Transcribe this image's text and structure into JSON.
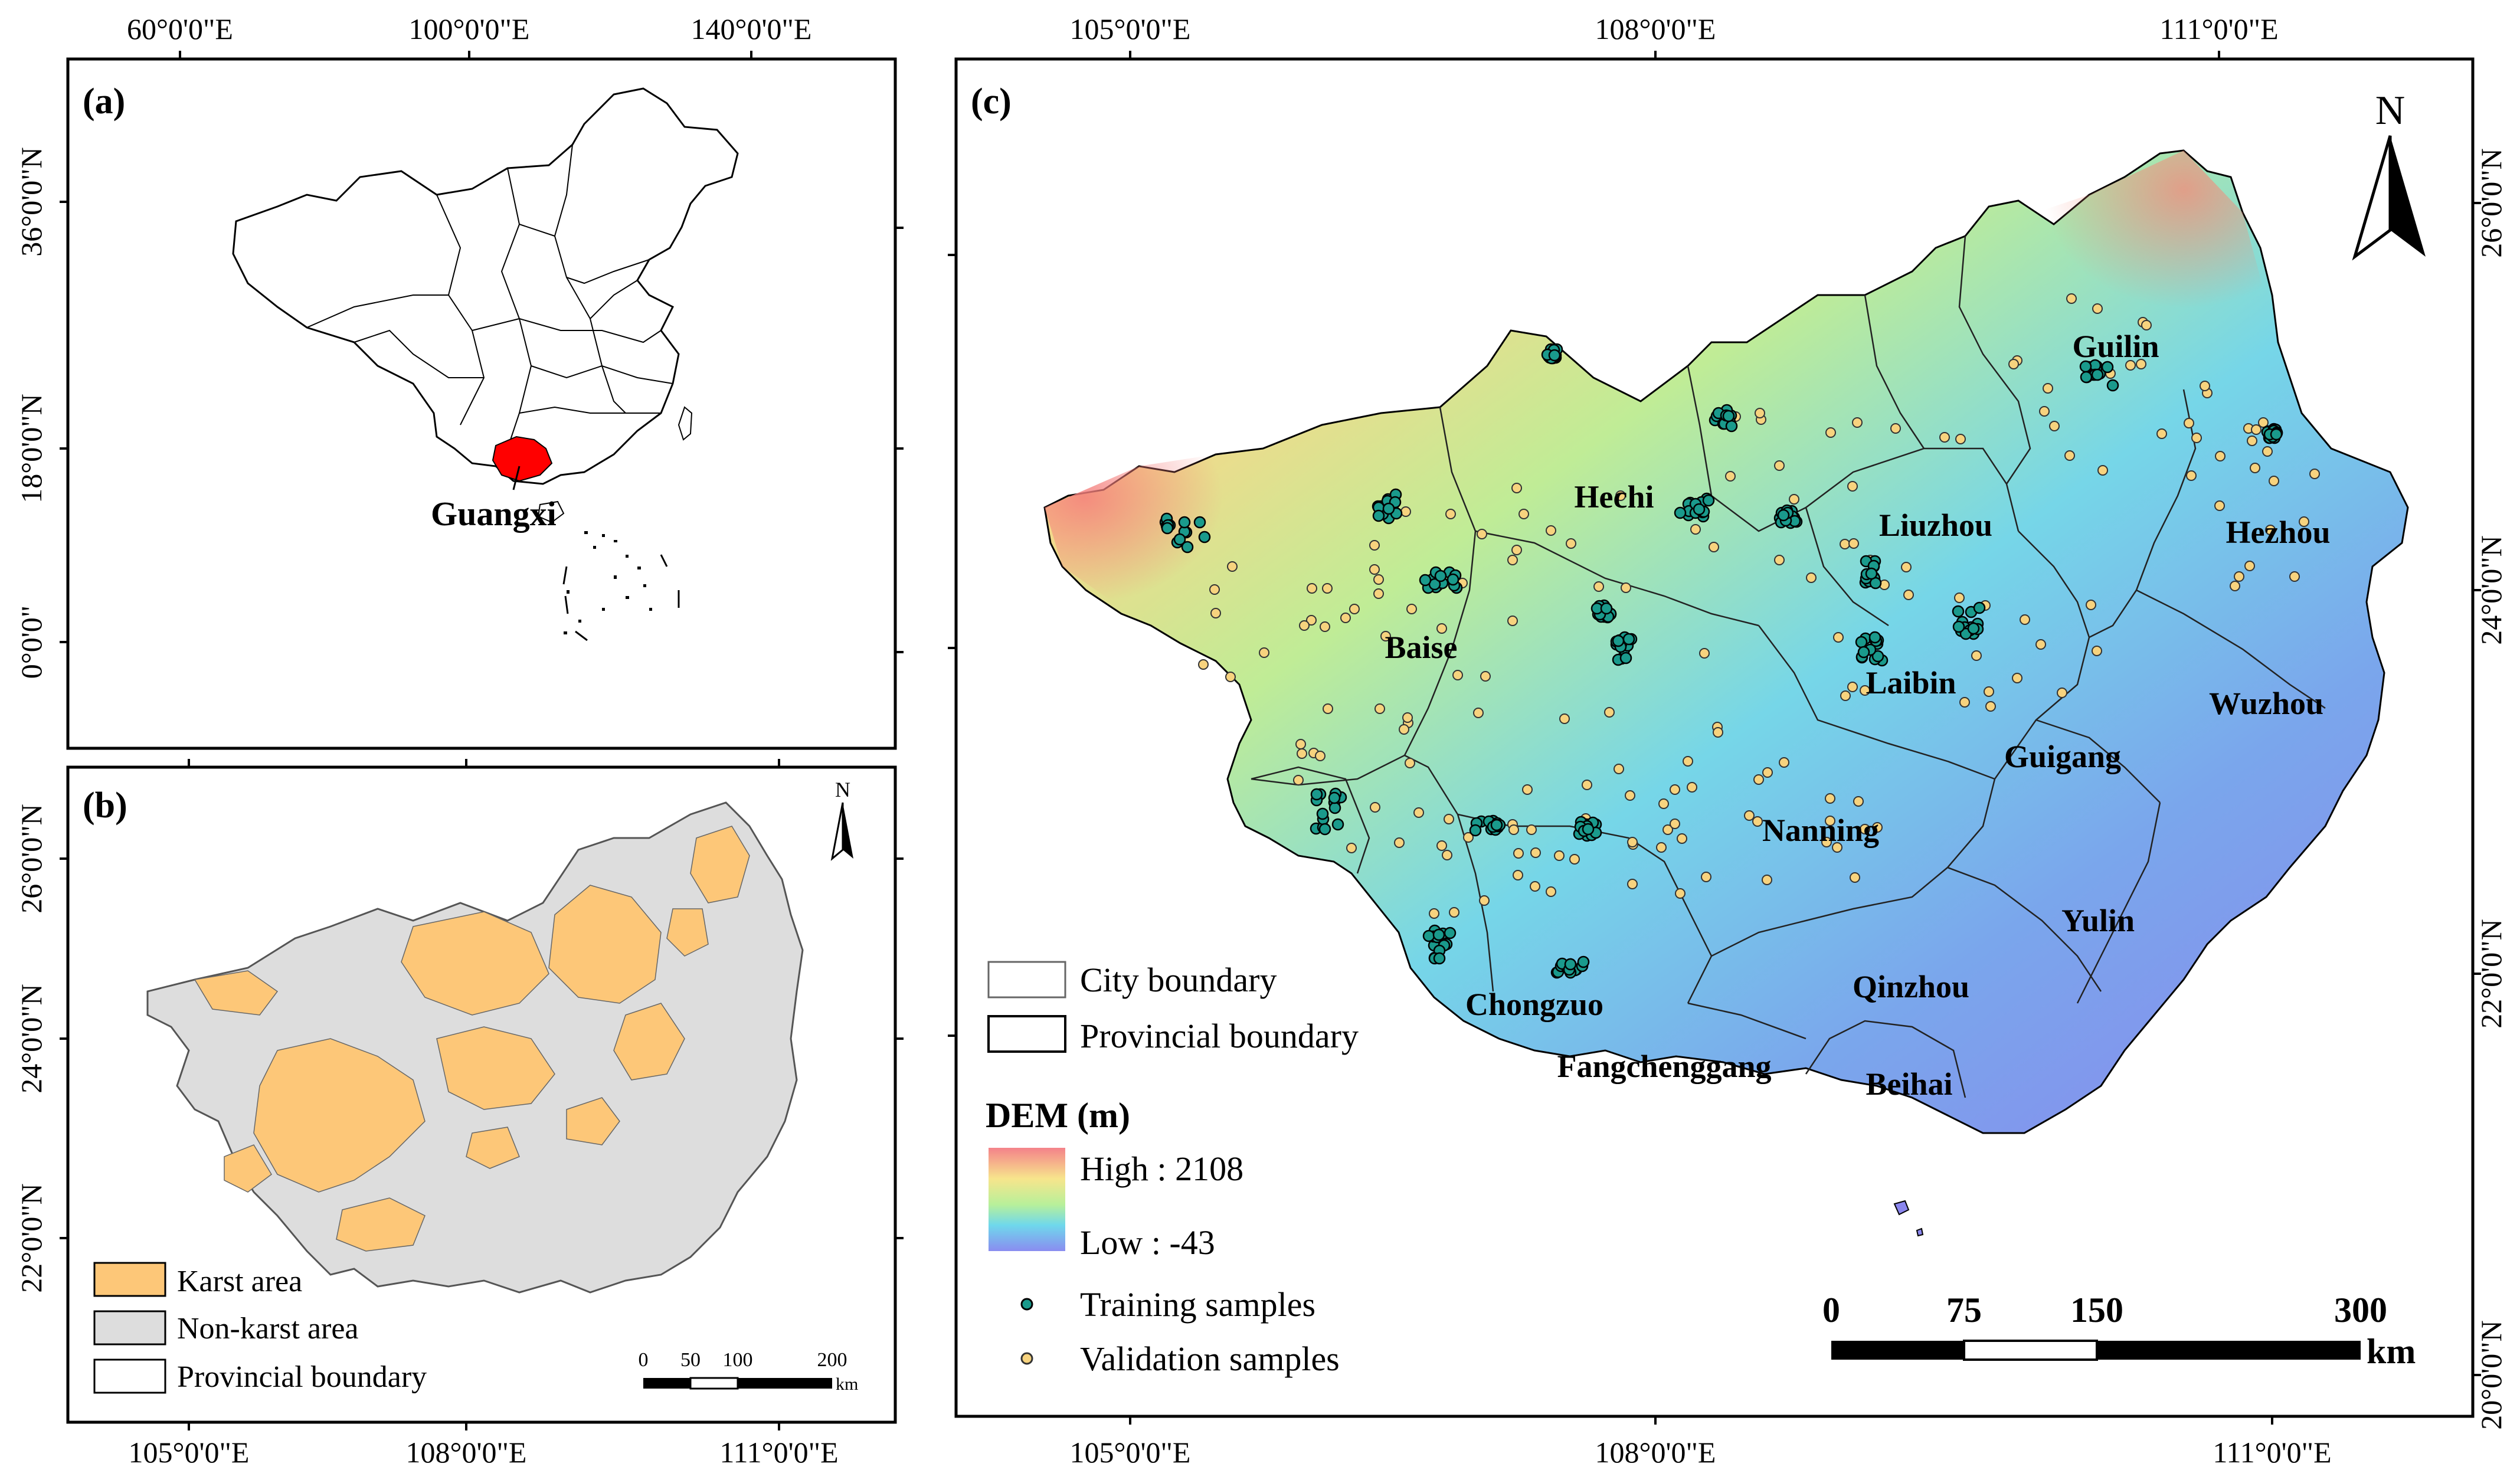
{
  "panel_a": {
    "label": "(a)",
    "top_ticks": [
      "60°0'0\"E",
      "100°0'0\"E",
      "140°0'0\"E"
    ],
    "left_ticks": [
      "36°0'0\"N",
      "18°0'0\"N",
      "0°0'0\""
    ],
    "highlight_label": "Guangxi",
    "highlight_color": "#ff0000"
  },
  "panel_b": {
    "label": "(b)",
    "bottom_ticks": [
      "105°0'0\"E",
      "108°0'0\"E",
      "111°0'0\"E"
    ],
    "left_ticks": [
      "26°0'0\"N",
      "24°0'0\"N",
      "22°0'0\"N"
    ],
    "north": "N",
    "scale_labels": [
      "0",
      "50",
      "100",
      "200"
    ],
    "scale_unit": "km",
    "legend": [
      {
        "label": "Karst area",
        "color": "#fdc778"
      },
      {
        "label": "Non-karst area",
        "color": "#dddddd"
      },
      {
        "label": "Provincial boundary",
        "color": "#ffffff"
      }
    ]
  },
  "panel_c": {
    "label": "(c)",
    "top_ticks": [
      "105°0'0\"E",
      "108°0'0\"E",
      "111°0'0\"E"
    ],
    "bottom_ticks": [
      "105°0'0\"E",
      "108°0'0\"E",
      "111°0'0\"E"
    ],
    "right_ticks": [
      "26°0'0\"N",
      "24°0'0\"N",
      "22°0'0\"N",
      "20°0'0\"N"
    ],
    "north": "N",
    "cities": [
      "Guilin",
      "Hechi",
      "Liuzhou",
      "Hezhou",
      "Baise",
      "Laibin",
      "Wuzhou",
      "Guigang",
      "Nanning",
      "Yulin",
      "Chongzuo",
      "Qinzhou",
      "Fangchenggang",
      "Beihai"
    ],
    "legend_boundaries": [
      "City boundary",
      "Provincial boundary"
    ],
    "dem_title": "DEM (m)",
    "dem_high": "High : 2108",
    "dem_low": "Low : -43",
    "samples": [
      {
        "label": "Training samples",
        "color": "#1a9a8c"
      },
      {
        "label": "Validation samples",
        "color": "#f7d37e"
      }
    ],
    "scale_labels": [
      "0",
      "75",
      "150",
      "300"
    ],
    "scale_unit": "km"
  }
}
